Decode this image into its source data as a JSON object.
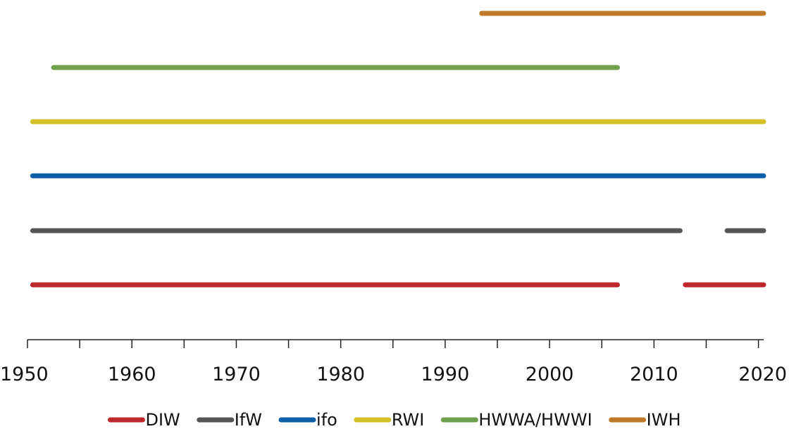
{
  "chart_data": {
    "type": "timeline",
    "title": "",
    "xlabel": "",
    "ylabel": "",
    "xlim": [
      1950,
      2020.5
    ],
    "x_ticks": [
      1950,
      1955,
      1960,
      1965,
      1970,
      1975,
      1980,
      1985,
      1990,
      1995,
      2000,
      2005,
      2010,
      2015,
      2020
    ],
    "x_tick_labels": [
      "1950",
      "1960",
      "1970",
      "1980",
      "1990",
      "2000",
      "2010",
      "2020"
    ],
    "x_tick_label_values": [
      1950,
      1960,
      1970,
      1980,
      1990,
      2000,
      2010,
      2020
    ],
    "grid": false,
    "legend_position": "bottom",
    "series": [
      {
        "name": "DIW",
        "color": "#c0272d",
        "segments": [
          [
            1950.5,
            2006.5
          ],
          [
            2013.0,
            2020.5
          ]
        ]
      },
      {
        "name": "IfW",
        "color": "#555555",
        "segments": [
          [
            1950.5,
            2012.5
          ],
          [
            2017.0,
            2020.5
          ]
        ]
      },
      {
        "name": "ifo",
        "color": "#0f5fa8",
        "segments": [
          [
            1950.5,
            2020.5
          ]
        ]
      },
      {
        "name": "RWI",
        "color": "#d2c124",
        "segments": [
          [
            1950.5,
            2020.5
          ]
        ]
      },
      {
        "name": "HWWA/HWWI",
        "color": "#6ea04c",
        "segments": [
          [
            1952.5,
            2006.5
          ]
        ]
      },
      {
        "name": "IWH",
        "color": "#bf7a2a",
        "segments": [
          [
            1993.5,
            2020.5
          ]
        ]
      }
    ]
  }
}
